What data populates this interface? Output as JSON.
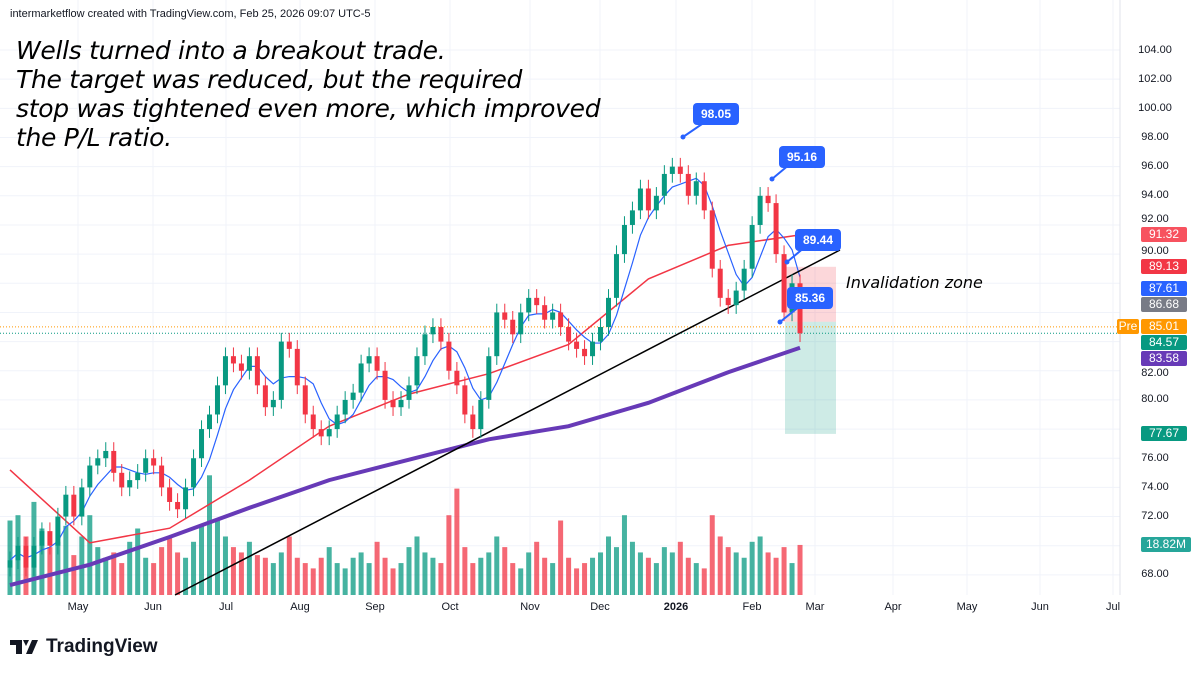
{
  "header": {
    "attribution": "intermarketflow created with TradingView.com, Feb 25, 2026 09:07 UTC-5"
  },
  "note": "Wells turned into a breakout trade.\nThe target was reduced, but the required\nstop was tightened even more, which improved\nthe P/L ratio.",
  "invalidation_label": "Invalidation zone",
  "logo": {
    "text": "TradingView",
    "icon": "tradingview-logo-icon"
  },
  "callouts": [
    "98.05",
    "95.16",
    "89.44",
    "85.36"
  ],
  "price_labels": [
    {
      "text": "91.32",
      "value": 91.32,
      "color": "#f7525f"
    },
    {
      "text": "89.13",
      "value": 89.13,
      "color": "#f23645"
    },
    {
      "text": "87.61",
      "value": 87.61,
      "color": "#2962ff"
    },
    {
      "text": "86.68",
      "value": 86.68,
      "color": "#787b86"
    },
    {
      "text": "85.01",
      "value": 85.01,
      "color": "#ff9800",
      "tag": "Pre"
    },
    {
      "text": "84.57",
      "value": 84.57,
      "color": "#089981"
    },
    {
      "text": "83.58",
      "value": 83.58,
      "color": "#673ab7"
    },
    {
      "text": "77.67",
      "value": 77.67,
      "color": "#089981"
    }
  ],
  "volume_label": {
    "text": "18.82M",
    "color": "#26a69a"
  },
  "chart_data": {
    "type": "candlestick",
    "ylim": [
      68,
      104
    ],
    "grid": true,
    "y_ticks": [
      "104.00",
      "102.00",
      "100.00",
      "98.00",
      "96.00",
      "94.00",
      "92.00",
      "90.00",
      "82.00",
      "80.00",
      "76.00",
      "74.00",
      "72.00",
      "68.00"
    ],
    "x_ticks": [
      "May",
      "Jun",
      "Jul",
      "Aug",
      "Sep",
      "Oct",
      "Nov",
      "Dec",
      "2026",
      "Feb",
      "Mar",
      "Apr",
      "May",
      "Jun",
      "Jul"
    ],
    "colors": {
      "up": "#089981",
      "down": "#f23645",
      "ma_fast": "#2962ff",
      "ma_mid": "#f23645",
      "ma_slow": "#673ab7",
      "trendline": "#000000"
    },
    "closes": [
      69,
      70,
      68.5,
      70,
      71,
      70,
      72,
      73.5,
      72,
      74,
      75.5,
      76,
      76.5,
      75,
      74,
      74.5,
      75,
      76,
      75.5,
      74,
      73,
      72.5,
      74,
      76,
      78,
      79,
      81,
      83,
      82.5,
      82,
      83,
      81,
      79.5,
      80,
      84,
      83.5,
      81,
      79,
      78,
      77.5,
      78,
      79,
      80,
      80.5,
      82.5,
      83,
      82,
      80,
      79.5,
      80,
      81,
      83,
      84.5,
      85,
      84,
      82,
      81,
      79,
      78,
      80,
      83,
      86,
      85.5,
      84.5,
      86,
      87,
      86.5,
      85.5,
      86,
      85,
      84,
      83.5,
      83,
      84,
      85,
      87,
      90,
      92,
      93,
      94.5,
      93,
      94,
      95.5,
      96,
      95.5,
      94,
      95,
      93,
      89,
      87,
      86.5,
      87.5,
      89,
      92,
      94,
      93.5,
      90,
      86,
      88,
      84.57
    ],
    "volumes_m": [
      28,
      30,
      22,
      35,
      25,
      18,
      20,
      26,
      15,
      22,
      30,
      18,
      14,
      16,
      12,
      20,
      25,
      14,
      12,
      18,
      22,
      16,
      14,
      20,
      26,
      45,
      28,
      22,
      18,
      16,
      20,
      15,
      14,
      12,
      16,
      22,
      14,
      12,
      10,
      14,
      18,
      12,
      10,
      14,
      16,
      12,
      20,
      14,
      10,
      12,
      18,
      22,
      16,
      14,
      12,
      30,
      40,
      18,
      12,
      14,
      16,
      22,
      18,
      12,
      10,
      16,
      20,
      14,
      12,
      28,
      14,
      10,
      12,
      14,
      16,
      22,
      18,
      30,
      20,
      16,
      14,
      12,
      18,
      16,
      20,
      14,
      12,
      10,
      30,
      22,
      18,
      16,
      14,
      20,
      22,
      16,
      14,
      18,
      12,
      18.82
    ],
    "ma_slow_samples": [
      67.3,
      68.7,
      70.6,
      72.6,
      74.5,
      75.9,
      77.3,
      78.2,
      79.8,
      81.9,
      83.58
    ],
    "ma_mid_samples": [
      75.2,
      70.2,
      71.2,
      74.5,
      78.2,
      80.4,
      81.8,
      83.8,
      88.3,
      90.6,
      91.32
    ],
    "trade": {
      "entry": 85.36,
      "stop": 89.13,
      "target": 77.67
    }
  }
}
